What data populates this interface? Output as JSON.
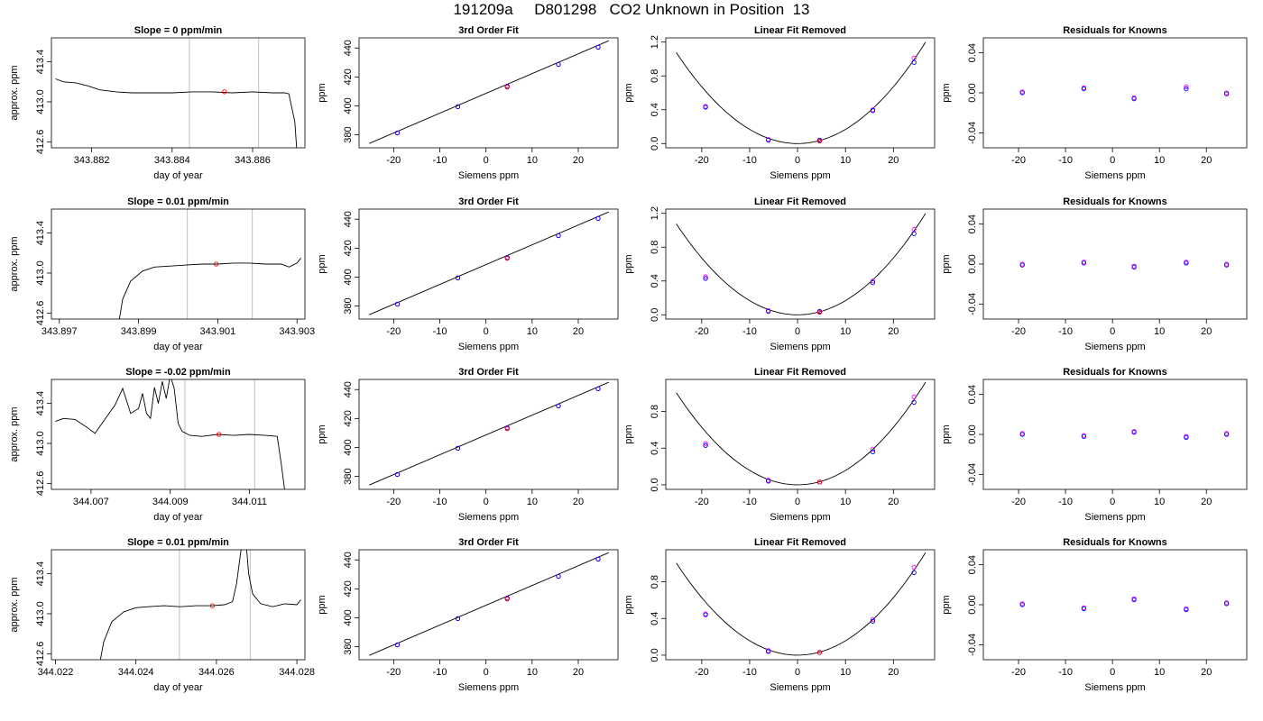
{
  "figure": {
    "title": "191209a     D801298   CO2 Unknown in Position  13"
  },
  "common_labels": {
    "time_x": "day of year",
    "time_y": "approx. ppm",
    "fit_title": "3rd Order Fit",
    "fit_x": "Siemens ppm",
    "fit_y": "ppm",
    "lin_title": "Linear Fit Removed",
    "lin_x": "Siemens ppm",
    "lin_y": "ppm",
    "res_title": "Residuals for Knowns",
    "res_x": "Siemens ppm",
    "res_y": "ppm"
  },
  "colors": {
    "line": "#000000",
    "vline": "#bebebe",
    "known_a": "#0000ff",
    "known_b": "#ff00ff",
    "unknown": "#ff0000"
  },
  "chart_data": {
    "type": "panel-grid",
    "knowns_x": [
      -19.2,
      -6.1,
      4.6,
      15.7,
      24.3
    ],
    "rows": [
      {
        "time_series": {
          "title": "Slope =  0  ppm/min",
          "xlim": [
            343.881,
            343.8873
          ],
          "ylim": [
            412.54,
            413.64
          ],
          "xticks": [
            343.882,
            343.884,
            343.886
          ],
          "yticks": [
            412.6,
            413.0,
            413.4
          ],
          "vlines": [
            343.88443,
            343.88615
          ],
          "unknown_point": [
            343.8853,
            413.1
          ],
          "points": [
            [
              343.8811,
              413.23
            ],
            [
              343.8813,
              413.2
            ],
            [
              343.8816,
              413.19
            ],
            [
              343.8819,
              413.16
            ],
            [
              343.8822,
              413.12
            ],
            [
              343.8826,
              413.1
            ],
            [
              343.883,
              413.09
            ],
            [
              343.8835,
              413.09
            ],
            [
              343.884,
              413.09
            ],
            [
              343.8845,
              413.1
            ],
            [
              343.885,
              413.1
            ],
            [
              343.8855,
              413.09
            ],
            [
              343.886,
              413.1
            ],
            [
              343.8865,
              413.09
            ],
            [
              343.8868,
              413.09
            ],
            [
              343.8869,
              413.08
            ],
            [
              343.88705,
              412.8
            ],
            [
              343.8871,
              412.5
            ]
          ]
        },
        "fit": {
          "xlim": [
            -27.5,
            28.6
          ],
          "ylim": [
            371,
            447
          ],
          "xticks": [
            -20,
            -10,
            0,
            10,
            20
          ],
          "yticks": [
            380,
            400,
            420,
            440
          ],
          "line": [
            [
              -25.3,
              374
            ],
            [
              26.6,
              445
            ]
          ],
          "knowns_y": [
            381.3,
            399.4,
            413.5,
            428.6,
            440.5
          ],
          "unknown_point": [
            4.6,
            413.0
          ]
        },
        "linear_removed": {
          "xlim": [
            -27.5,
            28.6
          ],
          "ylim": [
            -0.05,
            1.25
          ],
          "xticks": [
            -20,
            -10,
            0,
            10,
            20
          ],
          "yticks": [
            0.0,
            0.4,
            0.8,
            1.2
          ],
          "curve_coef": 0.00168,
          "knowns_a": [
            0.43,
            0.04,
            0.04,
            0.39,
            0.96
          ],
          "knowns_b": [
            0.44,
            0.05,
            0.04,
            0.4,
            1.01
          ],
          "unknown_point": [
            4.6,
            0.03
          ]
        },
        "residuals": {
          "xlim": [
            -27.5,
            28.6
          ],
          "ylim": [
            -0.055,
            0.055
          ],
          "xticks": [
            -20,
            -10,
            0,
            10,
            20
          ],
          "yticks": [
            -0.04,
            0.0,
            0.04
          ],
          "values_a": [
            0.0,
            0.004,
            -0.006,
            0.004,
            -0.001
          ],
          "values_b": [
            0.001,
            0.005,
            -0.005,
            0.006,
            0.0
          ]
        }
      },
      {
        "time_series": {
          "title": "Slope =  0.01  ppm/min",
          "xlim": [
            343.8968,
            343.9032
          ],
          "ylim": [
            412.54,
            413.64
          ],
          "xticks": [
            343.897,
            343.899,
            343.901,
            343.903
          ],
          "yticks": [
            412.6,
            413.0,
            413.4
          ],
          "vlines": [
            343.90023,
            343.90187
          ],
          "unknown_point": [
            343.90096,
            413.09
          ],
          "points": [
            [
              343.8985,
              412.5
            ],
            [
              343.8986,
              412.74
            ],
            [
              343.8988,
              412.92
            ],
            [
              343.8991,
              413.02
            ],
            [
              343.8994,
              413.06
            ],
            [
              343.8998,
              413.07
            ],
            [
              343.9002,
              413.08
            ],
            [
              343.9006,
              413.09
            ],
            [
              343.901,
              413.09
            ],
            [
              343.9014,
              413.1
            ],
            [
              343.9018,
              413.1
            ],
            [
              343.9022,
              413.09
            ],
            [
              343.9026,
              413.09
            ],
            [
              343.9028,
              413.06
            ],
            [
              343.903,
              413.1
            ],
            [
              343.9031,
              413.15
            ]
          ]
        },
        "fit": {
          "xlim": [
            -27.5,
            28.6
          ],
          "ylim": [
            371,
            447
          ],
          "xticks": [
            -20,
            -10,
            0,
            10,
            20
          ],
          "yticks": [
            380,
            400,
            420,
            440
          ],
          "line": [
            [
              -25.3,
              374
            ],
            [
              26.6,
              445
            ]
          ],
          "knowns_y": [
            381.3,
            399.4,
            413.5,
            428.6,
            440.5
          ],
          "unknown_point": [
            4.6,
            413.0
          ]
        },
        "linear_removed": {
          "xlim": [
            -27.5,
            28.6
          ],
          "ylim": [
            -0.05,
            1.25
          ],
          "xticks": [
            -20,
            -10,
            0,
            10,
            20
          ],
          "yticks": [
            0.0,
            0.4,
            0.8,
            1.2
          ],
          "curve_coef": 0.00168,
          "knowns_a": [
            0.43,
            0.04,
            0.04,
            0.38,
            0.96
          ],
          "knowns_b": [
            0.45,
            0.05,
            0.04,
            0.4,
            1.01
          ],
          "unknown_point": [
            4.6,
            0.03
          ]
        },
        "residuals": {
          "xlim": [
            -27.5,
            28.6
          ],
          "ylim": [
            -0.055,
            0.055
          ],
          "xticks": [
            -20,
            -10,
            0,
            10,
            20
          ],
          "yticks": [
            -0.04,
            0.0,
            0.04
          ],
          "values_a": [
            -0.001,
            0.001,
            -0.003,
            0.001,
            -0.001
          ],
          "values_b": [
            0.0,
            0.002,
            -0.002,
            0.002,
            0.0
          ]
        }
      },
      {
        "time_series": {
          "title": "Slope =  -0.02  ppm/min",
          "xlim": [
            344.006,
            344.0124
          ],
          "ylim": [
            412.54,
            413.64
          ],
          "xticks": [
            344.007,
            344.009,
            344.011
          ],
          "yticks": [
            412.6,
            413.0,
            413.4
          ],
          "vlines": [
            344.00937,
            344.01113
          ],
          "unknown_point": [
            344.01023,
            413.09
          ],
          "points": [
            [
              344.0061,
              413.22
            ],
            [
              344.0063,
              413.25
            ],
            [
              344.0066,
              413.24
            ],
            [
              344.0069,
              413.16
            ],
            [
              344.0071,
              413.1
            ],
            [
              344.0074,
              413.27
            ],
            [
              344.0076,
              413.38
            ],
            [
              344.0078,
              413.55
            ],
            [
              344.008,
              413.3
            ],
            [
              344.0082,
              413.35
            ],
            [
              344.0083,
              413.5
            ],
            [
              344.0084,
              413.3
            ],
            [
              344.0085,
              413.25
            ],
            [
              344.0086,
              413.56
            ],
            [
              344.0087,
              413.4
            ],
            [
              344.0088,
              413.62
            ],
            [
              344.0089,
              413.45
            ],
            [
              344.009,
              413.68
            ],
            [
              344.0091,
              413.55
            ],
            [
              344.0092,
              413.2
            ],
            [
              344.0093,
              413.12
            ],
            [
              344.0095,
              413.08
            ],
            [
              344.0098,
              413.07
            ],
            [
              344.0102,
              413.09
            ],
            [
              344.0106,
              413.08
            ],
            [
              344.011,
              413.09
            ],
            [
              344.0114,
              413.08
            ],
            [
              344.0117,
              413.07
            ],
            [
              344.0118,
              412.8
            ],
            [
              344.0119,
              412.5
            ]
          ]
        },
        "fit": {
          "xlim": [
            -27.5,
            28.6
          ],
          "ylim": [
            371,
            447
          ],
          "xticks": [
            -20,
            -10,
            0,
            10,
            20
          ],
          "yticks": [
            380,
            400,
            420,
            440
          ],
          "line": [
            [
              -25.3,
              374
            ],
            [
              26.6,
              445
            ]
          ],
          "knowns_y": [
            381.3,
            399.4,
            413.5,
            428.6,
            440.5
          ],
          "unknown_point": [
            4.6,
            413.0
          ]
        },
        "linear_removed": {
          "xlim": [
            -27.5,
            28.6
          ],
          "ylim": [
            -0.05,
            1.15
          ],
          "xticks": [
            -20,
            -10,
            0,
            10,
            20
          ],
          "yticks": [
            0.0,
            0.4,
            0.8
          ],
          "curve_coef": 0.00157,
          "knowns_a": [
            0.43,
            0.04,
            0.03,
            0.36,
            0.9
          ],
          "knowns_b": [
            0.45,
            0.05,
            0.03,
            0.39,
            0.96
          ],
          "unknown_point": [
            4.6,
            0.03
          ]
        },
        "residuals": {
          "xlim": [
            -27.5,
            28.6
          ],
          "ylim": [
            -0.055,
            0.055
          ],
          "xticks": [
            -20,
            -10,
            0,
            10,
            20
          ],
          "yticks": [
            -0.04,
            0.0,
            0.04
          ],
          "values_a": [
            0.0,
            -0.002,
            0.002,
            -0.003,
            0.0
          ],
          "values_b": [
            0.001,
            -0.001,
            0.003,
            -0.002,
            0.001
          ]
        }
      },
      {
        "time_series": {
          "title": "Slope =  0.01  ppm/min",
          "xlim": [
            344.0219,
            344.0282
          ],
          "ylim": [
            412.54,
            413.64
          ],
          "xticks": [
            344.022,
            344.024,
            344.026,
            344.028
          ],
          "yticks": [
            412.6,
            413.0,
            413.4
          ],
          "vlines": [
            344.02508,
            344.02684
          ],
          "unknown_point": [
            344.0259,
            413.08
          ],
          "points": [
            [
              344.0231,
              412.5
            ],
            [
              344.0232,
              412.72
            ],
            [
              344.0234,
              412.92
            ],
            [
              344.0237,
              413.02
            ],
            [
              344.024,
              413.06
            ],
            [
              344.0243,
              413.07
            ],
            [
              344.0247,
              413.08
            ],
            [
              344.0251,
              413.07
            ],
            [
              344.0255,
              413.08
            ],
            [
              344.0259,
              413.08
            ],
            [
              344.0262,
              413.09
            ],
            [
              344.0264,
              413.12
            ],
            [
              344.0265,
              413.3
            ],
            [
              344.0266,
              413.6
            ],
            [
              344.0267,
              413.9
            ],
            [
              344.0268,
              413.4
            ],
            [
              344.0269,
              413.2
            ],
            [
              344.0271,
              413.1
            ],
            [
              344.0274,
              413.07
            ],
            [
              344.0277,
              413.1
            ],
            [
              344.028,
              413.09
            ],
            [
              344.0281,
              413.14
            ]
          ]
        },
        "fit": {
          "xlim": [
            -27.5,
            28.6
          ],
          "ylim": [
            371,
            447
          ],
          "xticks": [
            -20,
            -10,
            0,
            10,
            20
          ],
          "yticks": [
            380,
            400,
            420,
            440
          ],
          "line": [
            [
              -25.3,
              374
            ],
            [
              26.6,
              445
            ]
          ],
          "knowns_y": [
            381.3,
            399.4,
            413.5,
            428.6,
            440.5
          ],
          "unknown_point": [
            4.6,
            413.0
          ]
        },
        "linear_removed": {
          "xlim": [
            -27.5,
            28.6
          ],
          "ylim": [
            -0.05,
            1.15
          ],
          "xticks": [
            -20,
            -10,
            0,
            10,
            20
          ],
          "yticks": [
            0.0,
            0.4,
            0.8
          ],
          "curve_coef": 0.00157,
          "knowns_a": [
            0.44,
            0.04,
            0.03,
            0.37,
            0.9
          ],
          "knowns_b": [
            0.45,
            0.05,
            0.03,
            0.39,
            0.96
          ],
          "unknown_point": [
            4.6,
            0.03
          ]
        },
        "residuals": {
          "xlim": [
            -27.5,
            28.6
          ],
          "ylim": [
            -0.055,
            0.055
          ],
          "xticks": [
            -20,
            -10,
            0,
            10,
            20
          ],
          "yticks": [
            -0.04,
            0.0,
            0.04
          ],
          "values_a": [
            0.0,
            -0.004,
            0.005,
            -0.005,
            0.001
          ],
          "values_b": [
            0.001,
            -0.003,
            0.006,
            -0.004,
            0.002
          ]
        }
      }
    ]
  }
}
